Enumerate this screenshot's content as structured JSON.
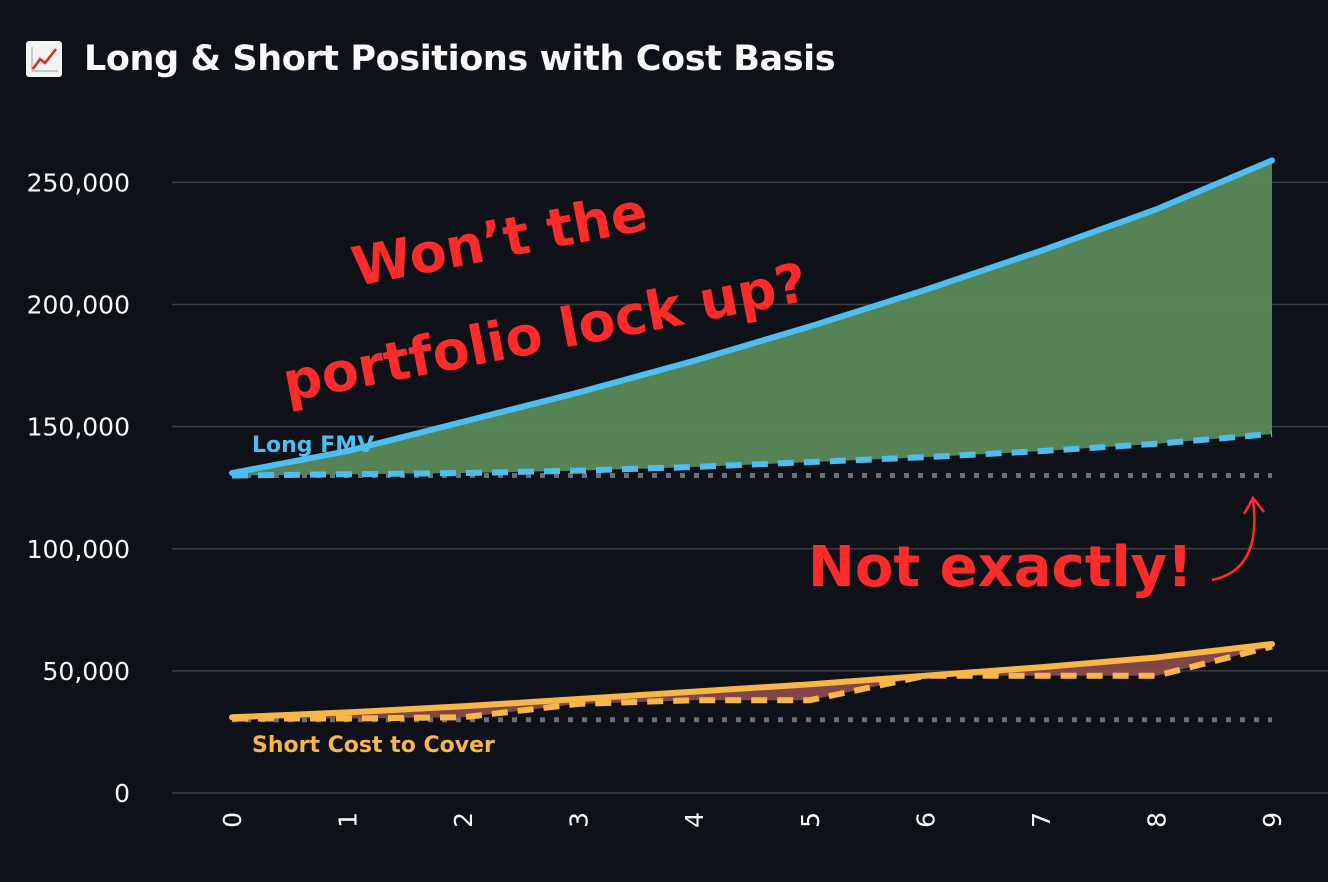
{
  "header": {
    "title": "Long & Short Positions with Cost Basis",
    "icon": "chart-increasing-icon"
  },
  "chart_data": {
    "type": "area",
    "x": [
      0,
      1,
      2,
      3,
      4,
      5,
      6,
      7,
      8,
      9
    ],
    "xticks": [
      "0",
      "1",
      "2",
      "3",
      "4",
      "5",
      "6",
      "7",
      "8",
      "9"
    ],
    "ylim": [
      0,
      260000
    ],
    "yticks": [
      {
        "value": 0,
        "label": "0"
      },
      {
        "value": 50000,
        "label": "50,000"
      },
      {
        "value": 100000,
        "label": "100,000"
      },
      {
        "value": 150000,
        "label": "150,000"
      },
      {
        "value": 200000,
        "label": "200,000"
      },
      {
        "value": 250000,
        "label": "250,000"
      }
    ],
    "grid": true,
    "series": [
      {
        "name": "Long FMV",
        "style": "solid",
        "color": "#4fbdf0",
        "values": [
          131000,
          140000,
          152000,
          164000,
          177000,
          191000,
          206000,
          222000,
          239000,
          259000
        ]
      },
      {
        "name": "",
        "style": "dashed",
        "color": "#4fbdf0",
        "values": [
          130000,
          130500,
          131000,
          132000,
          133500,
          135500,
          137500,
          140000,
          143000,
          147000
        ]
      },
      {
        "name": "",
        "style": "dotted",
        "color": "#6b6f76",
        "values": [
          130000,
          130000,
          130000,
          130000,
          130000,
          130000,
          130000,
          130000,
          130000,
          130000
        ]
      },
      {
        "name": "Short Cost to Cover",
        "style": "solid",
        "color": "#f7b64a",
        "values": [
          31000,
          33000,
          35500,
          38500,
          41500,
          44500,
          48000,
          51500,
          55500,
          61000
        ]
      },
      {
        "name": "",
        "style": "dashed",
        "color": "#f7b64a",
        "values": [
          30500,
          30500,
          31000,
          36500,
          38000,
          38000,
          48000,
          48000,
          48000,
          60000
        ]
      },
      {
        "name": "",
        "style": "dotted",
        "color": "#6b6f76",
        "values": [
          30000,
          30000,
          30000,
          30000,
          30000,
          30000,
          30000,
          30000,
          30000,
          30000
        ]
      }
    ],
    "fills": [
      {
        "between": [
          "Long FMV",
          "long-cost-basis"
        ],
        "color": "#5a8a5a"
      },
      {
        "between": [
          "Short Cost to Cover",
          "short-cost-basis"
        ],
        "color": "#8a4a4a"
      }
    ],
    "labels": {
      "long": "Long FMV",
      "short": "Short Cost to Cover"
    },
    "annotations": [
      {
        "id": "question",
        "lines": [
          "Won’t the",
          "portfolio lock up?"
        ]
      },
      {
        "id": "answer",
        "text": "Not exactly!"
      }
    ]
  },
  "colors": {
    "background": "#0e1117",
    "grid": "#3a3d44",
    "text": "#fafafa",
    "annotation": "#ff2b2b"
  }
}
